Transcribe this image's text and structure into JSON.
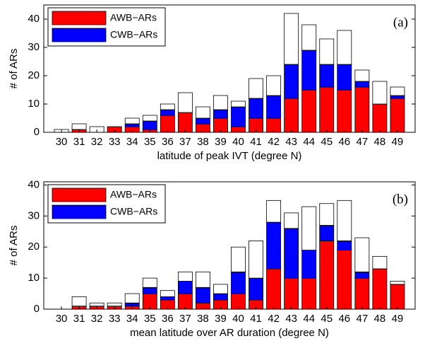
{
  "chart_data": [
    {
      "type": "bar",
      "stacked": true,
      "annotation": "(a)",
      "legend": "upper left",
      "xlabel": "latitude of peak IVT (degree N)",
      "ylabel": "# of ARs",
      "categories": [
        "30",
        "31",
        "32",
        "33",
        "34",
        "35",
        "36",
        "37",
        "38",
        "39",
        "40",
        "41",
        "42",
        "43",
        "44",
        "45",
        "46",
        "47",
        "48",
        "49"
      ],
      "series": [
        {
          "name": "AWB−ARs",
          "color": "#ff0000",
          "values": [
            0,
            1,
            0,
            2,
            2,
            1,
            6,
            7,
            3,
            5,
            2,
            5,
            5,
            12,
            15,
            16,
            15,
            16,
            10,
            12
          ]
        },
        {
          "name": "CWB−ARs",
          "color": "#0000ff",
          "values": [
            0,
            0,
            0,
            0,
            1,
            3,
            2,
            0,
            2,
            3,
            7,
            7,
            8,
            12,
            14,
            8,
            9,
            2,
            0,
            1
          ]
        },
        {
          "color": "#ffffff",
          "values": [
            1,
            2,
            2,
            0,
            2,
            2,
            2,
            7,
            4,
            5,
            2,
            7,
            7,
            18,
            9,
            9,
            12,
            4,
            8,
            3
          ]
        }
      ],
      "ylim": [
        0,
        45
      ],
      "yticks": [
        0,
        10,
        20,
        30,
        40
      ]
    },
    {
      "type": "bar",
      "stacked": true,
      "annotation": "(b)",
      "legend": "upper left",
      "xlabel": "mean latitude over AR duration (degree N)",
      "ylabel": "# of ARs",
      "categories": [
        "30",
        "31",
        "32",
        "33",
        "34",
        "35",
        "36",
        "37",
        "38",
        "39",
        "40",
        "41",
        "42",
        "43",
        "44",
        "45",
        "46",
        "47",
        "48",
        "49"
      ],
      "series": [
        {
          "name": "AWB−ARs",
          "color": "#ff0000",
          "values": [
            0,
            1,
            1,
            1,
            1,
            5,
            3,
            5,
            2,
            3,
            5,
            3,
            13,
            10,
            10,
            22,
            19,
            10,
            13,
            8
          ]
        },
        {
          "name": "CWB−ARs",
          "color": "#0000ff",
          "values": [
            0,
            0,
            0,
            0,
            1,
            2,
            1,
            4,
            5,
            2,
            7,
            7,
            15,
            16,
            9,
            5,
            3,
            2,
            0,
            0
          ]
        },
        {
          "color": "#ffffff",
          "values": [
            0,
            3,
            1,
            1,
            3,
            3,
            2,
            3,
            5,
            3,
            8,
            12,
            7,
            5,
            14,
            7,
            13,
            11,
            4,
            1
          ]
        }
      ],
      "ylim": [
        0,
        41
      ],
      "yticks": [
        0,
        10,
        20,
        30,
        40
      ]
    }
  ]
}
